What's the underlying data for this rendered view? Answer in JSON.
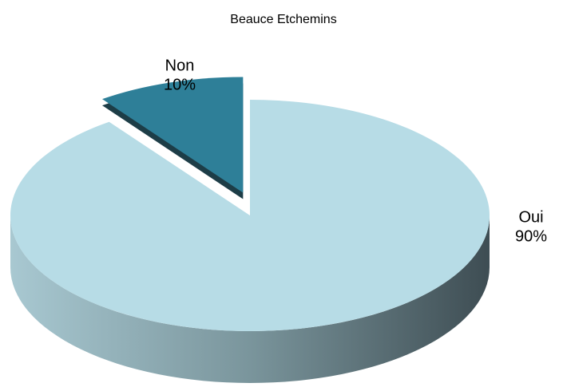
{
  "chart_data": {
    "type": "pie",
    "title": "Beauce Etchemins",
    "categories": [
      "Oui",
      "Non"
    ],
    "values": [
      90,
      10
    ],
    "value_labels": [
      "90%",
      "10%"
    ],
    "colors": [
      "#b7dce6",
      "#2e7f98"
    ]
  }
}
